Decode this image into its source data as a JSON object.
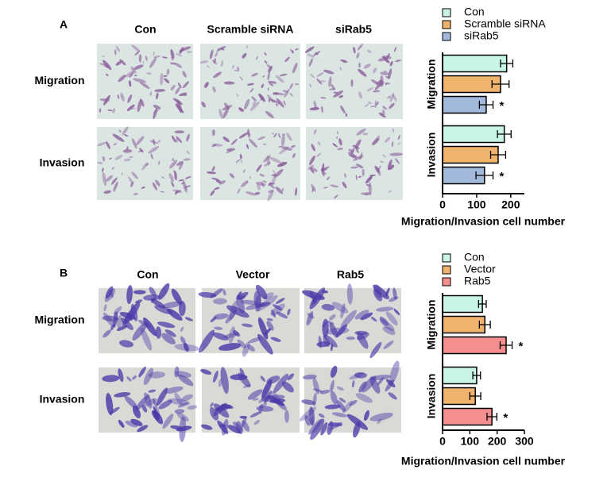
{
  "panels": [
    {
      "label": "A",
      "columns": [
        "Con",
        "Scramble siRNA",
        "siRab5"
      ],
      "rows": [
        "Migration",
        "Invasion"
      ]
    },
    {
      "label": "B",
      "columns": [
        "Con",
        "Vector",
        "Rab5"
      ],
      "rows": [
        "Migration",
        "Invasion"
      ]
    }
  ],
  "chart_data": [
    {
      "type": "bar",
      "orientation": "horizontal",
      "groups": [
        "Migration",
        "Invasion"
      ],
      "series": [
        {
          "name": "Con",
          "color": "#c8f5e4",
          "values": [
            188,
            181
          ],
          "errors": [
            18,
            20
          ]
        },
        {
          "name": "Scramble siRNA",
          "color": "#f0b36e",
          "values": [
            170,
            163
          ],
          "errors": [
            25,
            22
          ]
        },
        {
          "name": "siRab5",
          "color": "#a3b9dc",
          "values": [
            128,
            123
          ],
          "errors": [
            20,
            25
          ],
          "annotations": [
            "*",
            "*"
          ]
        }
      ],
      "xlabel": "Migration/Invasion cell number",
      "xlim": [
        0,
        240
      ],
      "xticks": [
        0,
        100,
        200
      ],
      "legend": "top"
    },
    {
      "type": "bar",
      "orientation": "horizontal",
      "groups": [
        "Migration",
        "Invasion"
      ],
      "series": [
        {
          "name": "Con",
          "color": "#c8f5e4",
          "values": [
            146,
            125
          ],
          "errors": [
            14,
            14
          ]
        },
        {
          "name": "Vector",
          "color": "#f0b36e",
          "values": [
            155,
            120
          ],
          "errors": [
            20,
            20
          ]
        },
        {
          "name": "Rab5",
          "color": "#f58f8f",
          "values": [
            233,
            181
          ],
          "errors": [
            22,
            18
          ],
          "annotations": [
            "*",
            "*"
          ]
        }
      ],
      "xlabel": "Migration/Invasion cell number",
      "xlim": [
        0,
        300
      ],
      "xticks": [
        0,
        100,
        200,
        300
      ],
      "legend": "top"
    }
  ]
}
